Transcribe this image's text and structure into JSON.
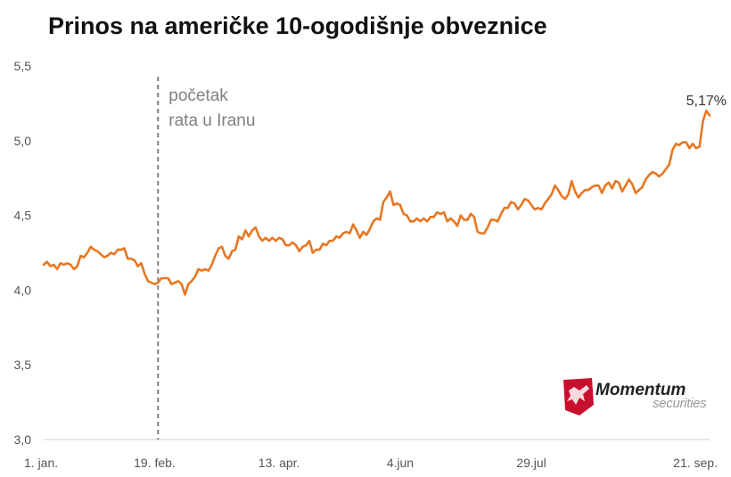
{
  "title": "Prinos na američke 10-ogodišnje obveznice",
  "colors": {
    "line": "#e87722",
    "axis": "#d0d0d0",
    "annotation_line": "#808080",
    "logo_red": "#c8102e"
  },
  "logo": {
    "name": "Momentum",
    "tagline": "securities",
    "icon": "bull-icon"
  },
  "chart_data": {
    "type": "line",
    "title": "Prinos na američke 10-ogodišnje obveznice",
    "xlabel": "",
    "ylabel": "",
    "ylim": [
      3.0,
      5.5
    ],
    "yticks": [
      "3,0",
      "3,5",
      "4,0",
      "4,5",
      "5,0",
      "5,5"
    ],
    "ytick_values": [
      3.0,
      3.5,
      4.0,
      4.5,
      5.0,
      5.5
    ],
    "xticks": [
      {
        "label": "1. jan.",
        "index": 0
      },
      {
        "label": "19. feb.",
        "index": 33
      },
      {
        "label": "13. apr.",
        "index": 70
      },
      {
        "label": "4.jun",
        "index": 106
      },
      {
        "label": "29.jul",
        "index": 145
      },
      {
        "label": "21. sep.",
        "index": 182
      }
    ],
    "grid": false,
    "legend": "none",
    "annotations": [
      {
        "type": "vline",
        "index": 34,
        "text_lines": [
          "početak",
          "rata u Iranu"
        ]
      },
      {
        "type": "last_value",
        "text": "5,17%"
      }
    ],
    "series": [
      {
        "values": [
          4.17,
          4.19,
          4.16,
          4.17,
          4.14,
          4.18,
          4.17,
          4.18,
          4.17,
          4.14,
          4.16,
          4.23,
          4.22,
          4.25,
          4.29,
          4.27,
          4.26,
          4.24,
          4.22,
          4.23,
          4.25,
          4.24,
          4.27,
          4.27,
          4.28,
          4.21,
          4.21,
          4.2,
          4.16,
          4.18,
          4.11,
          4.06,
          4.05,
          4.04,
          4.05,
          4.08,
          4.08,
          4.08,
          4.04,
          4.05,
          4.06,
          4.04,
          3.97,
          4.04,
          4.06,
          4.09,
          4.14,
          4.13,
          4.14,
          4.13,
          4.17,
          4.23,
          4.28,
          4.29,
          4.23,
          4.21,
          4.26,
          4.27,
          4.36,
          4.34,
          4.4,
          4.36,
          4.4,
          4.42,
          4.36,
          4.33,
          4.35,
          4.33,
          4.35,
          4.33,
          4.35,
          4.34,
          4.3,
          4.3,
          4.32,
          4.3,
          4.26,
          4.29,
          4.3,
          4.33,
          4.25,
          4.27,
          4.27,
          4.31,
          4.3,
          4.33,
          4.33,
          4.36,
          4.35,
          4.38,
          4.39,
          4.38,
          4.44,
          4.4,
          4.35,
          4.39,
          4.37,
          4.41,
          4.46,
          4.48,
          4.47,
          4.59,
          4.62,
          4.66,
          4.57,
          4.58,
          4.57,
          4.51,
          4.5,
          4.46,
          4.46,
          4.48,
          4.46,
          4.48,
          4.46,
          4.49,
          4.49,
          4.52,
          4.51,
          4.52,
          4.46,
          4.48,
          4.46,
          4.43,
          4.5,
          4.47,
          4.47,
          4.51,
          4.49,
          4.39,
          4.38,
          4.38,
          4.42,
          4.47,
          4.47,
          4.46,
          4.51,
          4.55,
          4.55,
          4.59,
          4.58,
          4.54,
          4.57,
          4.61,
          4.6,
          4.57,
          4.54,
          4.55,
          4.54,
          4.58,
          4.61,
          4.64,
          4.7,
          4.67,
          4.63,
          4.61,
          4.64,
          4.73,
          4.66,
          4.62,
          4.65,
          4.67,
          4.67,
          4.69,
          4.7,
          4.7,
          4.65,
          4.7,
          4.72,
          4.68,
          4.73,
          4.72,
          4.66,
          4.7,
          4.74,
          4.71,
          4.65,
          4.67,
          4.69,
          4.74,
          4.77,
          4.79,
          4.78,
          4.76,
          4.78,
          4.81,
          4.84,
          4.94,
          4.98,
          4.97,
          4.99,
          4.99,
          4.95,
          4.98,
          4.95,
          4.96,
          5.13,
          5.2,
          5.17
        ]
      }
    ]
  }
}
